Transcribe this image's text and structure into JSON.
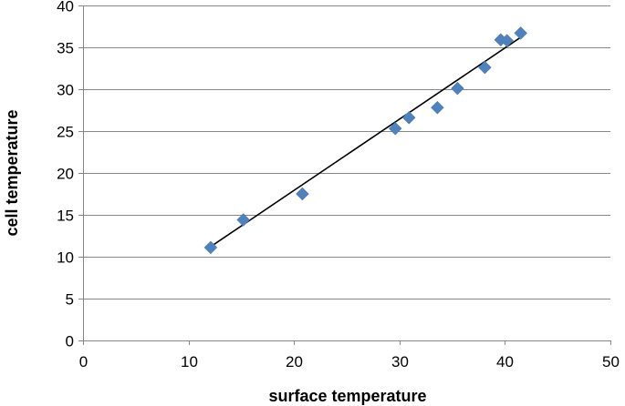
{
  "chart_data": {
    "type": "scatter",
    "title": "",
    "xlabel": "surface temperature",
    "ylabel": "cell temperature",
    "xlim": [
      0,
      50
    ],
    "ylim": [
      0,
      40
    ],
    "xticks": [
      0,
      10,
      20,
      30,
      40,
      50
    ],
    "yticks": [
      0,
      5,
      10,
      15,
      20,
      25,
      30,
      35,
      40
    ],
    "grid": "horizontal",
    "legend": "none",
    "series": [
      {
        "marker": "diamond",
        "color": "#4f81bd",
        "points": [
          {
            "x": 12.1,
            "y": 11.1
          },
          {
            "x": 15.2,
            "y": 14.4
          },
          {
            "x": 20.8,
            "y": 17.5
          },
          {
            "x": 29.6,
            "y": 25.3
          },
          {
            "x": 30.9,
            "y": 26.6
          },
          {
            "x": 33.6,
            "y": 27.8
          },
          {
            "x": 35.5,
            "y": 30.1
          },
          {
            "x": 38.1,
            "y": 32.6
          },
          {
            "x": 39.6,
            "y": 35.9
          },
          {
            "x": 40.2,
            "y": 35.8
          },
          {
            "x": 41.5,
            "y": 36.7
          }
        ]
      }
    ],
    "trendline": {
      "type": "linear",
      "color": "#000000",
      "x_start": 12.1,
      "y_start": 11.2,
      "x_end": 41.5,
      "y_end": 36.2
    }
  }
}
